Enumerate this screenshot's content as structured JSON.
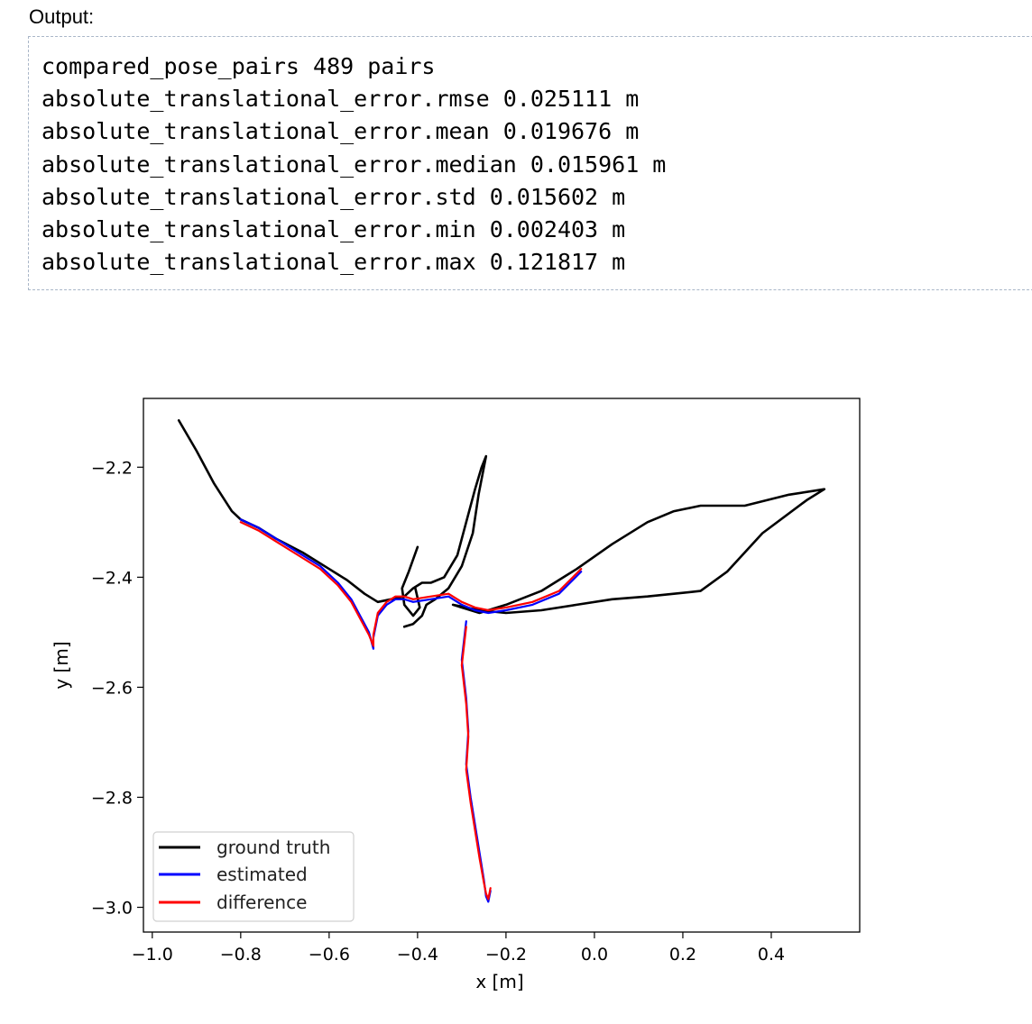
{
  "cell": {
    "label": "Output:",
    "lines": [
      "compared_pose_pairs 489 pairs",
      "absolute_translational_error.rmse 0.025111 m",
      "absolute_translational_error.mean 0.019676 m",
      "absolute_translational_error.median 0.015961 m",
      "absolute_translational_error.std 0.015602 m",
      "absolute_translational_error.min 0.002403 m",
      "absolute_translational_error.max 0.121817 m"
    ]
  },
  "chart_data": {
    "type": "line",
    "title": "",
    "xlabel": "x [m]",
    "ylabel": "y [m]",
    "xlim": [
      -1.02,
      0.6
    ],
    "ylim": [
      -3.045,
      -2.075
    ],
    "xticks": [
      -1.0,
      -0.8,
      -0.6,
      -0.4,
      -0.2,
      0.0,
      0.2,
      0.4
    ],
    "xtick_labels": [
      "−1.0",
      "−0.8",
      "−0.6",
      "−0.4",
      "−0.2",
      "0.0",
      "0.2",
      "0.4"
    ],
    "yticks": [
      -2.2,
      -2.4,
      -2.6,
      -2.8,
      -3.0
    ],
    "ytick_labels": [
      "−2.2",
      "−2.4",
      "−2.6",
      "−2.8",
      "−3.0"
    ],
    "grid": false,
    "legend_position": "bottom-left",
    "series": [
      {
        "name": "ground truth",
        "color": "#000000",
        "x": [
          -0.94,
          -0.9,
          -0.86,
          -0.82,
          -0.8,
          -0.76,
          -0.72,
          -0.66,
          -0.6,
          -0.56,
          -0.52,
          -0.49,
          -0.46,
          -0.43,
          -0.41,
          -0.39,
          -0.37,
          -0.34,
          -0.31,
          -0.29,
          -0.27,
          -0.255,
          -0.245,
          -0.262,
          -0.275,
          -0.3,
          -0.33,
          -0.36,
          -0.38,
          -0.39,
          -0.41,
          -0.43
        ],
        "y": [
          -2.115,
          -2.17,
          -2.23,
          -2.28,
          -2.295,
          -2.31,
          -2.33,
          -2.355,
          -2.385,
          -2.405,
          -2.43,
          -2.445,
          -2.44,
          -2.435,
          -2.42,
          -2.41,
          -2.41,
          -2.4,
          -2.36,
          -2.3,
          -2.24,
          -2.2,
          -2.18,
          -2.25,
          -2.32,
          -2.38,
          -2.42,
          -2.44,
          -2.45,
          -2.47,
          -2.485,
          -2.49
        ]
      },
      {
        "name": "ground truth",
        "color": "#000000",
        "x": [
          -0.4,
          -0.42,
          -0.435,
          -0.43,
          -0.41,
          -0.395,
          -0.405
        ],
        "y": [
          -2.345,
          -2.39,
          -2.42,
          -2.45,
          -2.47,
          -2.455,
          -2.42
        ]
      },
      {
        "name": "ground truth",
        "color": "#000000",
        "x": [
          -0.32,
          -0.26,
          -0.2,
          -0.12,
          -0.04,
          0.04,
          0.12,
          0.18,
          0.24,
          0.34,
          0.44,
          0.52,
          0.48,
          0.38,
          0.3,
          0.24,
          0.18,
          0.12,
          0.04,
          -0.04,
          -0.12,
          -0.2,
          -0.26,
          -0.32
        ],
        "y": [
          -2.45,
          -2.465,
          -2.45,
          -2.425,
          -2.385,
          -2.34,
          -2.3,
          -2.28,
          -2.27,
          -2.27,
          -2.25,
          -2.24,
          -2.26,
          -2.32,
          -2.39,
          -2.425,
          -2.43,
          -2.435,
          -2.44,
          -2.45,
          -2.46,
          -2.465,
          -2.46,
          -2.45
        ]
      },
      {
        "name": "estimated",
        "color": "#0000ff",
        "x": [
          -0.8,
          -0.76,
          -0.72,
          -0.66,
          -0.62,
          -0.58,
          -0.55,
          -0.53,
          -0.51,
          -0.5,
          -0.5,
          -0.49,
          -0.47,
          -0.45,
          -0.43,
          -0.41,
          -0.37,
          -0.33,
          -0.3,
          -0.27,
          -0.24,
          -0.2,
          -0.14,
          -0.08,
          -0.03
        ],
        "y": [
          -2.295,
          -2.31,
          -2.33,
          -2.36,
          -2.38,
          -2.41,
          -2.44,
          -2.47,
          -2.5,
          -2.53,
          -2.51,
          -2.47,
          -2.45,
          -2.44,
          -2.44,
          -2.445,
          -2.44,
          -2.435,
          -2.45,
          -2.46,
          -2.465,
          -2.46,
          -2.45,
          -2.43,
          -2.39
        ]
      },
      {
        "name": "estimated",
        "color": "#0000ff",
        "x": [
          -0.29,
          -0.3,
          -0.29,
          -0.285,
          -0.29,
          -0.28,
          -0.27,
          -0.26,
          -0.25,
          -0.245,
          -0.24,
          -0.235
        ],
        "y": [
          -2.48,
          -2.55,
          -2.62,
          -2.68,
          -2.74,
          -2.8,
          -2.85,
          -2.9,
          -2.95,
          -2.98,
          -2.99,
          -2.97
        ]
      },
      {
        "name": "difference",
        "color": "#ff0000",
        "x": [
          -0.8,
          -0.76,
          -0.72,
          -0.66,
          -0.62,
          -0.58,
          -0.55,
          -0.53,
          -0.51,
          -0.5,
          -0.5,
          -0.49,
          -0.47,
          -0.45,
          -0.43,
          -0.41,
          -0.37,
          -0.33,
          -0.3,
          -0.27,
          -0.24,
          -0.2,
          -0.14,
          -0.08,
          -0.03
        ],
        "y": [
          -2.3,
          -2.315,
          -2.335,
          -2.365,
          -2.385,
          -2.415,
          -2.445,
          -2.475,
          -2.505,
          -2.525,
          -2.505,
          -2.465,
          -2.445,
          -2.435,
          -2.435,
          -2.44,
          -2.435,
          -2.43,
          -2.445,
          -2.455,
          -2.46,
          -2.455,
          -2.445,
          -2.425,
          -2.385
        ]
      },
      {
        "name": "difference",
        "color": "#ff0000",
        "x": [
          -0.29,
          -0.3,
          -0.29,
          -0.285,
          -0.29,
          -0.28,
          -0.27,
          -0.26,
          -0.25,
          -0.245,
          -0.24,
          -0.235
        ],
        "y": [
          -2.49,
          -2.56,
          -2.63,
          -2.69,
          -2.75,
          -2.81,
          -2.86,
          -2.91,
          -2.955,
          -2.975,
          -2.985,
          -2.965
        ]
      }
    ]
  }
}
